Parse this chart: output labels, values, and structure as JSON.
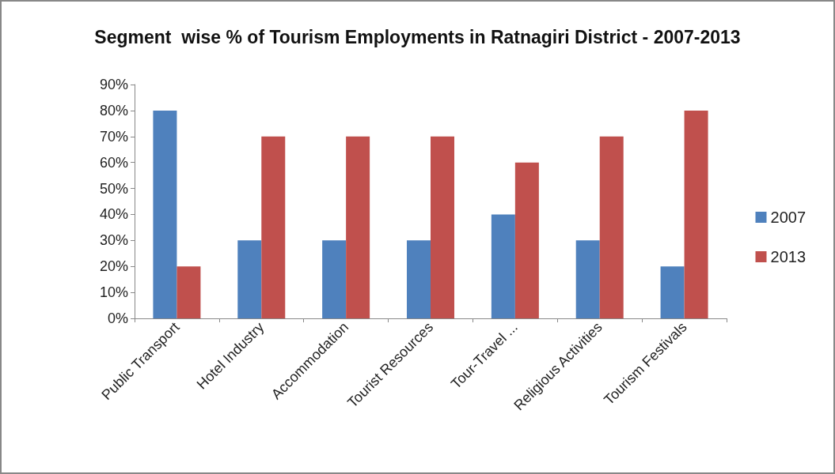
{
  "chart_data": {
    "type": "bar",
    "title": "Segment  wise % of Tourism Employments in Ratnagiri District - 2007-2013",
    "categories": [
      "Public Transport",
      "Hotel Industry",
      "Accommodation",
      "Tourist Resources",
      "Tour-Travel ...",
      "Religious Activities",
      "Tourism Festivals"
    ],
    "series": [
      {
        "name": "2007",
        "color": "#4f81bd",
        "values": [
          80,
          30,
          30,
          30,
          40,
          30,
          20
        ]
      },
      {
        "name": "2013",
        "color": "#c0504d",
        "values": [
          20,
          70,
          70,
          70,
          60,
          70,
          80
        ]
      }
    ],
    "ylim": [
      0,
      90
    ],
    "yticks": [
      {
        "value": 0,
        "label": "0%"
      },
      {
        "value": 10,
        "label": "10%"
      },
      {
        "value": 20,
        "label": "20%"
      },
      {
        "value": 30,
        "label": "30%"
      },
      {
        "value": 40,
        "label": "40%"
      },
      {
        "value": 50,
        "label": "50%"
      },
      {
        "value": 60,
        "label": "60%"
      },
      {
        "value": 70,
        "label": "70%"
      },
      {
        "value": 80,
        "label": "80%"
      },
      {
        "value": 90,
        "label": "90%"
      }
    ],
    "grid": false,
    "legend": "right"
  }
}
